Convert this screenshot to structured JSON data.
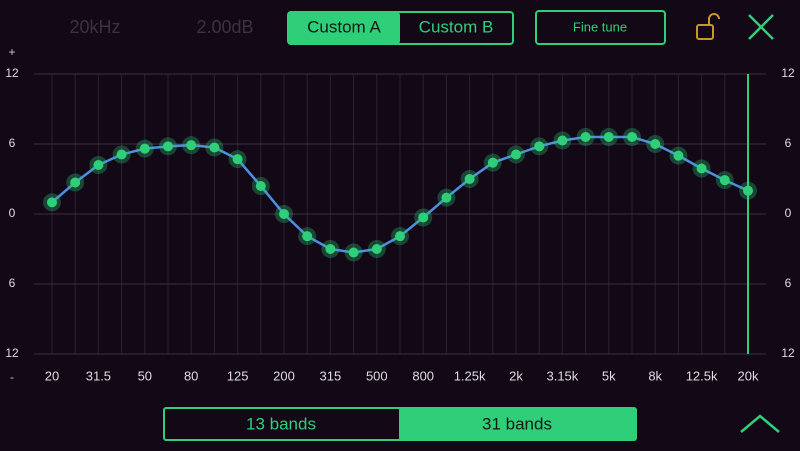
{
  "header": {
    "frequency": "20kHz",
    "gain": "2.00dB",
    "presets": [
      "Custom A",
      "Custom B"
    ],
    "fine_tune": "Fine tune"
  },
  "eq_chart": {
    "type": "line",
    "positive_sign": "+",
    "negative_sign": "-",
    "categories": [
      "20",
      null,
      "31.5",
      null,
      "50",
      null,
      "80",
      null,
      "125",
      null,
      "200",
      null,
      "315",
      null,
      "500",
      null,
      "800",
      null,
      "1.25k",
      null,
      "2k",
      null,
      "3.15k",
      null,
      "5k",
      null,
      "8k",
      null,
      "12.5k",
      null,
      "20k"
    ],
    "values": [
      1.0,
      2.7,
      4.2,
      5.1,
      5.6,
      5.8,
      5.9,
      5.7,
      4.7,
      2.4,
      0,
      -1.9,
      -3.0,
      -3.3,
      -3.0,
      -1.9,
      -0.3,
      1.4,
      3.0,
      4.4,
      5.1,
      5.8,
      6.3,
      6.6,
      6.6,
      6.6,
      6.0,
      5.0,
      3.9,
      2.9,
      2.0
    ],
    "ylim": [
      -12,
      12
    ],
    "yticks": [
      {
        "value": -12,
        "label": "12"
      },
      {
        "value": -6,
        "label": "6"
      },
      0,
      6,
      12
    ],
    "color": "#4a8fe0",
    "marker_color": "#2fcf7a",
    "grid": true
  },
  "footer": {
    "band_modes": [
      "13 bands",
      "31 bands"
    ]
  }
}
